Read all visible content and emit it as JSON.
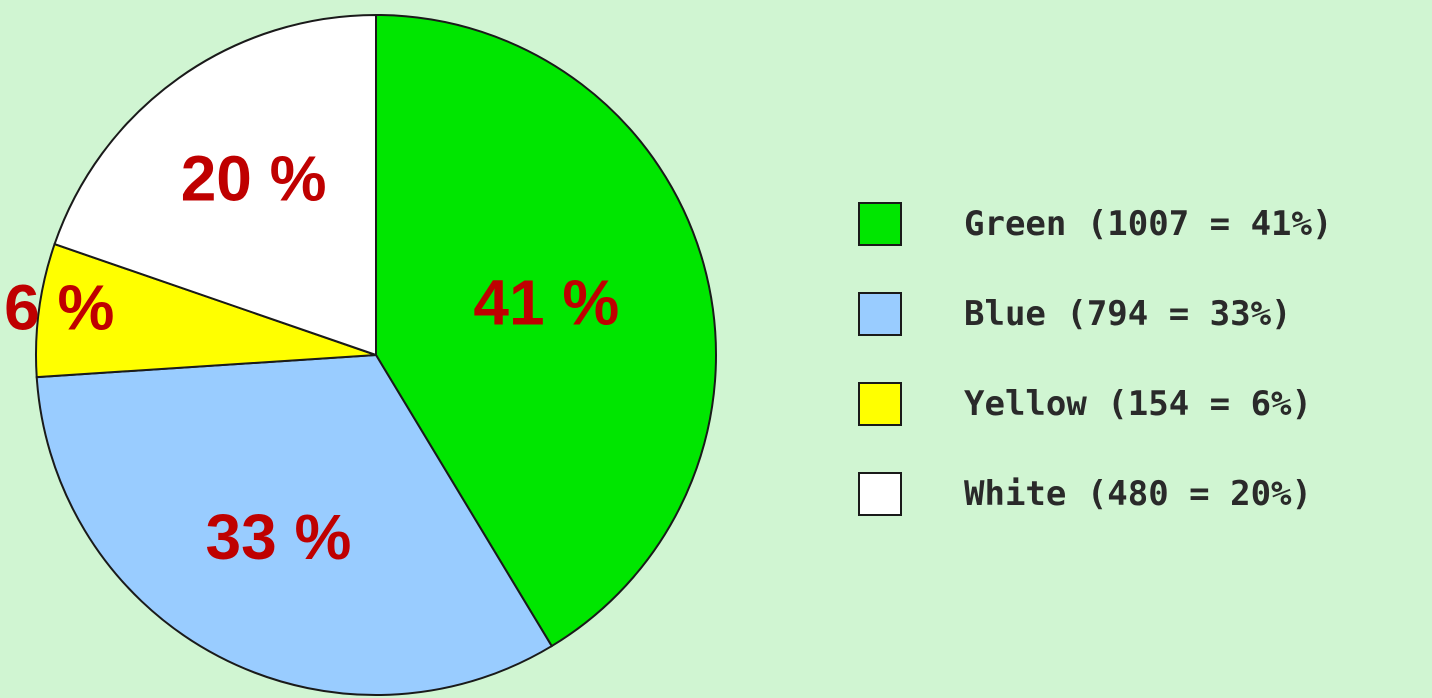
{
  "chart_data": {
    "type": "pie",
    "slices": [
      {
        "name": "Green",
        "value": 1007,
        "percent": 41,
        "color": "#00e600",
        "label": "41 %",
        "legend": "Green (1007 = 41%)"
      },
      {
        "name": "Blue",
        "value": 794,
        "percent": 33,
        "color": "#99ccff",
        "label": "33 %",
        "legend": "Blue (794 = 33%)"
      },
      {
        "name": "Yellow",
        "value": 154,
        "percent": 6,
        "color": "#ffff00",
        "label": "6 %",
        "legend": "Yellow (154 = 6%)"
      },
      {
        "name": "White",
        "value": 480,
        "percent": 20,
        "color": "#ffffff",
        "label": "20 %",
        "legend": "White (480 = 20%)"
      }
    ],
    "start_angle": "12 o'clock",
    "direction": "clockwise",
    "legend_placement": "right",
    "slice_label_color": "#bf0000",
    "outline_color": "#1a1a1a"
  }
}
